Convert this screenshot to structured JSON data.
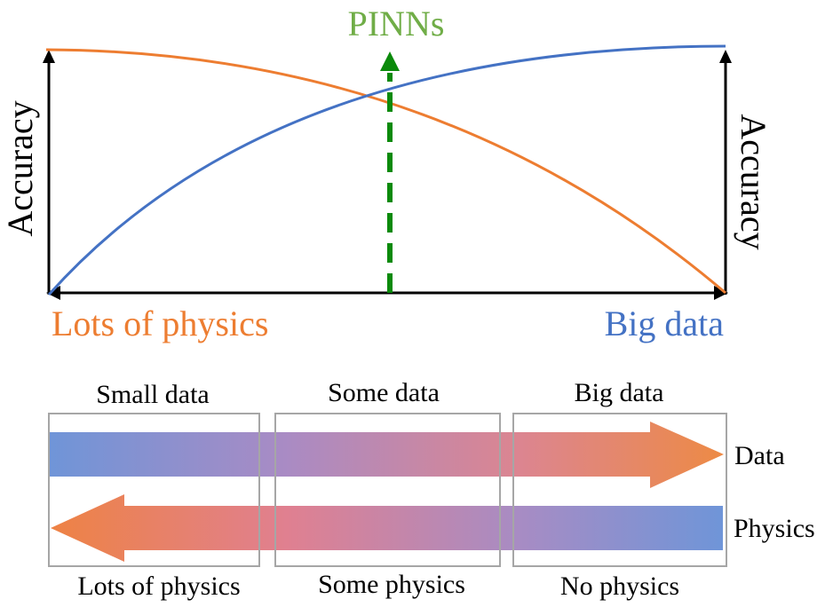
{
  "top": {
    "pinns_label": "PINNs",
    "left_axis_label": "Accuracy",
    "right_axis_label": "Accuracy",
    "left_end_label": "Lots of physics",
    "right_end_label": "Big data"
  },
  "bottom": {
    "columns": [
      {
        "top_label": "Small data",
        "bottom_label": "Lots of physics"
      },
      {
        "top_label": "Some data",
        "bottom_label": "Some physics"
      },
      {
        "top_label": "Big data",
        "bottom_label": "No physics"
      }
    ],
    "data_arrow_label": "Data",
    "physics_arrow_label": "Physics"
  },
  "colors": {
    "orange": "#ED7D31",
    "blue": "#4472C4",
    "pinns_green": "#70AD47",
    "dashed_green": "#0B8A0B",
    "box_gray": "#A6A6A6"
  }
}
